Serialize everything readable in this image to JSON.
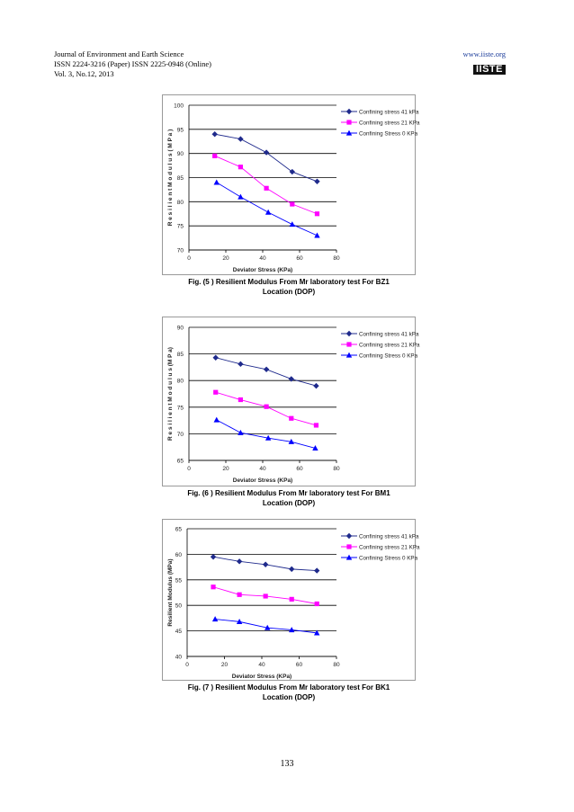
{
  "header": {
    "journal": "Journal of Environment and Earth Science",
    "issn": "ISSN 2224-3216 (Paper) ISSN 2225-0948 (Online)",
    "volume": "Vol. 3, No.12, 2013",
    "url": "www.iiste.org",
    "logo": "IISTE"
  },
  "series_colors": {
    "s41": "#1f2a8c",
    "s21": "#ff00ff",
    "s0": "#0000ff"
  },
  "chart_data": [
    {
      "type": "line",
      "ylabel": "R e s i l i e n t   M o d u l u s   ( M P a )",
      "xlabel": "Deviator Stress (KPa)",
      "xlim": [
        0,
        80
      ],
      "ylim": [
        70,
        100
      ],
      "xticks": [
        0,
        20,
        40,
        60,
        80
      ],
      "yticks": [
        70,
        75,
        80,
        85,
        90,
        95,
        100
      ],
      "grid": true,
      "legend": "top-right",
      "caption": [
        "Fig. (5 )  Resilient Modulus From Mr laboratory test For  BZ1",
        "Location (DOP)"
      ],
      "series": [
        {
          "name": "Confining stress 41 kPa",
          "marker": "diamond",
          "x": [
            14,
            28,
            42,
            56,
            69.5
          ],
          "y": [
            94,
            93,
            90.2,
            86.2,
            84.2
          ]
        },
        {
          "name": "Confining stress 21 KPa",
          "marker": "square",
          "x": [
            14,
            28,
            42,
            56,
            69.5
          ],
          "y": [
            89.5,
            87.2,
            82.8,
            79.5,
            77.5
          ]
        },
        {
          "name": "Confining Stress 0 KPa",
          "marker": "triangle",
          "x": [
            15,
            28,
            43,
            56,
            69.5
          ],
          "y": [
            84,
            81,
            77.8,
            75.3,
            73
          ]
        }
      ]
    },
    {
      "type": "line",
      "ylabel": "R e s i l i e n t   M o d u l u s   (M P a)",
      "xlabel": "Deviator Stress (KPa)",
      "xlim": [
        0,
        80
      ],
      "ylim": [
        65,
        90
      ],
      "xticks": [
        0,
        20,
        40,
        60,
        80
      ],
      "yticks": [
        65,
        70,
        75,
        80,
        85,
        90
      ],
      "grid": true,
      "legend": "top-right",
      "caption": [
        "Fig. (6 )  Resilient Modulus From Mr laboratory test For  BM1",
        "Location (DOP)"
      ],
      "series": [
        {
          "name": "Confining stress 41 kPa",
          "marker": "diamond",
          "x": [
            14.5,
            28,
            42,
            55.5,
            69
          ],
          "y": [
            84.3,
            83.1,
            82.1,
            80.3,
            79
          ]
        },
        {
          "name": "Confining stress 21 KPa",
          "marker": "square",
          "x": [
            14.5,
            28,
            42,
            55.5,
            69
          ],
          "y": [
            77.8,
            76.4,
            75.1,
            72.9,
            71.6
          ]
        },
        {
          "name": "Confining Stress 0 KPa",
          "marker": "triangle",
          "x": [
            15,
            28,
            43,
            55.5,
            68.5
          ],
          "y": [
            72.6,
            70.2,
            69.2,
            68.5,
            67.3
          ]
        }
      ]
    },
    {
      "type": "line",
      "ylabel": "Resilient Modulus (MPa)",
      "xlabel": "Deviator Stress (KPa)",
      "xlim": [
        0,
        80
      ],
      "ylim": [
        40,
        65
      ],
      "xticks": [
        0,
        20,
        40,
        60,
        80
      ],
      "yticks": [
        40,
        45,
        50,
        55,
        60,
        65
      ],
      "grid": true,
      "legend": "top-right",
      "caption": [
        "Fig. (7 )  Resilient Modulus From Mr laboratory test For  BK1",
        "Location (DOP)"
      ],
      "series": [
        {
          "name": "Confining stress 41 kPa",
          "marker": "diamond",
          "x": [
            14,
            28,
            42,
            56,
            69.5
          ],
          "y": [
            59.5,
            58.6,
            58,
            57.1,
            56.8
          ]
        },
        {
          "name": "Confining stress 21 KPa",
          "marker": "square",
          "x": [
            14,
            28,
            42,
            56,
            69.5
          ],
          "y": [
            53.6,
            52.1,
            51.8,
            51.2,
            50.3
          ]
        },
        {
          "name": "Confining Stress 0 KPa",
          "marker": "triangle",
          "x": [
            15,
            28,
            43,
            56,
            69.5
          ],
          "y": [
            47.3,
            46.8,
            45.6,
            45.2,
            44.6
          ]
        }
      ]
    }
  ],
  "page_number": "133"
}
